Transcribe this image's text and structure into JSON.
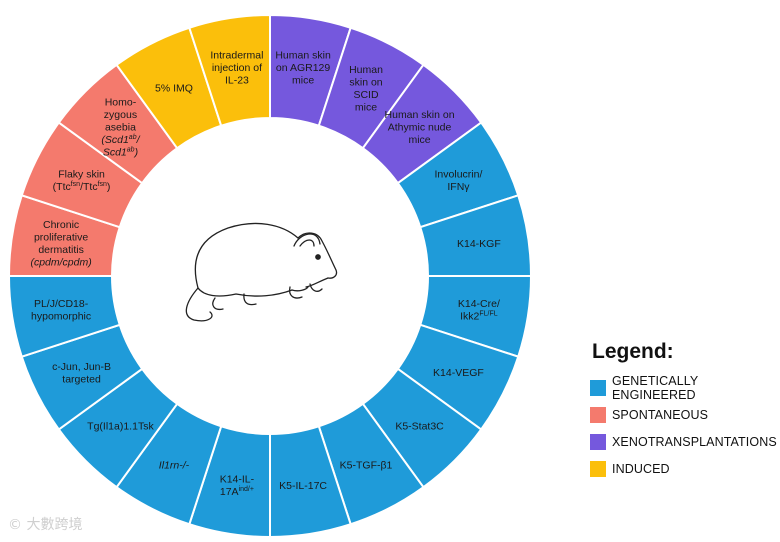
{
  "colors": {
    "genetically_engineered": "#1f9bd9",
    "spontaneous": "#f47a6d",
    "xenotransplantations": "#7558dd",
    "induced": "#fbbf0b"
  },
  "segments": [
    {
      "category": "xenotransplantations",
      "lines": [
        [
          {
            "t": "Human skin"
          }
        ],
        [
          {
            "t": "on AGR129"
          }
        ],
        [
          {
            "t": "mice"
          }
        ]
      ]
    },
    {
      "category": "xenotransplantations",
      "lines": [
        [
          {
            "t": "Human"
          }
        ],
        [
          {
            "t": "skin on"
          }
        ],
        [
          {
            "t": "SCID"
          }
        ],
        [
          {
            "t": "mice"
          }
        ]
      ]
    },
    {
      "category": "xenotransplantations",
      "lines": [
        [
          {
            "t": "Human skin on"
          }
        ],
        [
          {
            "t": "Athymic nude"
          }
        ],
        [
          {
            "t": "mice"
          }
        ]
      ]
    },
    {
      "category": "genetically_engineered",
      "lines": [
        [
          {
            "t": "Involucrin/"
          }
        ],
        [
          {
            "t": "IFNγ"
          }
        ]
      ]
    },
    {
      "category": "genetically_engineered",
      "lines": [
        [
          {
            "t": "K14-KGF"
          }
        ]
      ]
    },
    {
      "category": "genetically_engineered",
      "lines": [
        [
          {
            "t": "K14-Cre/"
          }
        ],
        [
          {
            "t": "Ikk2"
          },
          {
            "t": "FL/FL",
            "sup": true
          }
        ]
      ]
    },
    {
      "category": "genetically_engineered",
      "lines": [
        [
          {
            "t": "K14-VEGF"
          }
        ]
      ]
    },
    {
      "category": "genetically_engineered",
      "lines": [
        [
          {
            "t": "K5-Stat3C"
          }
        ]
      ]
    },
    {
      "category": "genetically_engineered",
      "lines": [
        [
          {
            "t": "K5-TGF-β1"
          }
        ]
      ]
    },
    {
      "category": "genetically_engineered",
      "lines": [
        [
          {
            "t": "K5-IL-17C"
          }
        ]
      ]
    },
    {
      "category": "genetically_engineered",
      "lines": [
        [
          {
            "t": "K14-IL-"
          }
        ],
        [
          {
            "t": "17A"
          },
          {
            "t": "ind/+",
            "sup": true
          }
        ]
      ]
    },
    {
      "category": "genetically_engineered",
      "lines": [
        [
          {
            "t": "Il1rn-/-",
            "italic": true
          }
        ]
      ]
    },
    {
      "category": "genetically_engineered",
      "lines": [
        [
          {
            "t": "Tg(Il1a)1.1Tsk"
          }
        ]
      ]
    },
    {
      "category": "genetically_engineered",
      "lines": [
        [
          {
            "t": "c-Jun, Jun-B"
          }
        ],
        [
          {
            "t": "targeted"
          }
        ]
      ]
    },
    {
      "category": "genetically_engineered",
      "lines": [
        [
          {
            "t": "PL/J/CD18-"
          }
        ],
        [
          {
            "t": "hypomorphic"
          }
        ]
      ]
    },
    {
      "category": "spontaneous",
      "lines": [
        [
          {
            "t": "Chronic"
          }
        ],
        [
          {
            "t": "proliferative"
          }
        ],
        [
          {
            "t": "dermatitis"
          }
        ],
        [
          {
            "t": "(cpdm/cpdm)",
            "italic": true
          }
        ]
      ]
    },
    {
      "category": "spontaneous",
      "lines": [
        [
          {
            "t": "Flaky skin"
          }
        ],
        [
          {
            "t": "(Ttc"
          },
          {
            "t": "fsn",
            "sup": true
          },
          {
            "t": "/Ttc"
          },
          {
            "t": "fsn",
            "sup": true
          },
          {
            "t": ")"
          }
        ]
      ]
    },
    {
      "category": "spontaneous",
      "lines": [
        [
          {
            "t": "Homo-"
          }
        ],
        [
          {
            "t": "zygous"
          }
        ],
        [
          {
            "t": "asebia"
          }
        ],
        [
          {
            "t": "(",
            "italic": true
          },
          {
            "t": "Scd1",
            "italic": true
          },
          {
            "t": "ab",
            "sup": true,
            "italic": true
          },
          {
            "t": "/",
            "italic": true
          }
        ],
        [
          {
            "t": "Scd1",
            "italic": true
          },
          {
            "t": "ab",
            "sup": true,
            "italic": true
          },
          {
            "t": ")",
            "italic": true
          }
        ]
      ]
    },
    {
      "category": "induced",
      "lines": [
        [
          {
            "t": "5% IMQ"
          }
        ]
      ]
    },
    {
      "category": "induced",
      "lines": [
        [
          {
            "t": "Intradermal"
          }
        ],
        [
          {
            "t": "injection of"
          }
        ],
        [
          {
            "t": "IL-23"
          }
        ]
      ]
    }
  ],
  "legend": {
    "title": "Legend:",
    "items": [
      {
        "key": "genetically_engineered",
        "label": "GENETICALLY ENGINEERED"
      },
      {
        "key": "spontaneous",
        "label": "SPONTANEOUS"
      },
      {
        "key": "xenotransplantations",
        "label": "XENOTRANSPLANTATIONS"
      },
      {
        "key": "induced",
        "label": "INDUCED"
      }
    ]
  },
  "watermark": "© 大數跨境"
}
